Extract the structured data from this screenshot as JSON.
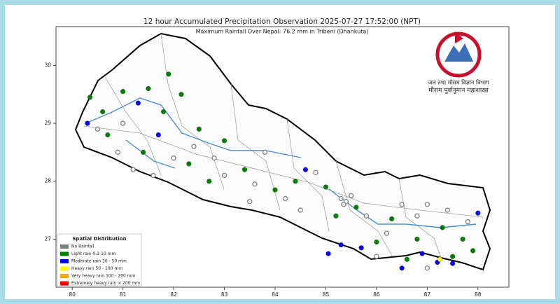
{
  "map": {
    "title": "12 hour Accumulated Precipitation Observation 2025-07-27 17:52:00 (NPT)",
    "subtitle": "Maximum Rainfall Over Nepal: 76.2 mm in Tribeni (Dhankuta)",
    "xlim": [
      79.68,
      88.61
    ],
    "ylim": [
      26.17,
      30.67
    ],
    "xticks": [
      80,
      81,
      82,
      83,
      84,
      85,
      86,
      87,
      88
    ],
    "yticks": [
      27,
      28,
      29,
      30
    ],
    "legend": {
      "title": "Spatial Distribution",
      "items": [
        {
          "label": "No Rainfall",
          "color": "#808080"
        },
        {
          "label": "Light rain 0.1-10 mm",
          "color": "#008000"
        },
        {
          "label": "Moderate rain 10 - 50 mm",
          "color": "#0000ff"
        },
        {
          "label": "Heavy rain 50 - 100 mm",
          "color": "#ffff00"
        },
        {
          "label": "Very heavy rain 100 - 200 mm",
          "color": "#ffa500"
        },
        {
          "label": "Extremely heavy rain > 200 mm",
          "color": "#ff0000"
        }
      ]
    },
    "logo": {
      "line1": "जल तथा मौसम विज्ञान विभाग",
      "line2": "मौसम पूर्वानुमान महाशाखा"
    },
    "stations": [
      {
        "lon": 80.35,
        "lat": 29.45,
        "cls": 1
      },
      {
        "lon": 80.6,
        "lat": 29.2,
        "cls": 1
      },
      {
        "lon": 81.0,
        "lat": 29.55,
        "cls": 1
      },
      {
        "lon": 81.5,
        "lat": 29.6,
        "cls": 1
      },
      {
        "lon": 81.9,
        "lat": 29.85,
        "cls": 1
      },
      {
        "lon": 82.15,
        "lat": 29.5,
        "cls": 1
      },
      {
        "lon": 81.8,
        "lat": 29.2,
        "cls": 1
      },
      {
        "lon": 80.7,
        "lat": 28.8,
        "cls": 1
      },
      {
        "lon": 81.4,
        "lat": 28.5,
        "cls": 1
      },
      {
        "lon": 82.3,
        "lat": 28.3,
        "cls": 1
      },
      {
        "lon": 82.7,
        "lat": 28.0,
        "cls": 1
      },
      {
        "lon": 83.4,
        "lat": 28.2,
        "cls": 1
      },
      {
        "lon": 84.0,
        "lat": 27.85,
        "cls": 1
      },
      {
        "lon": 84.4,
        "lat": 28.0,
        "cls": 1
      },
      {
        "lon": 85.0,
        "lat": 27.9,
        "cls": 1
      },
      {
        "lon": 85.6,
        "lat": 27.55,
        "cls": 1
      },
      {
        "lon": 86.3,
        "lat": 27.35,
        "cls": 1
      },
      {
        "lon": 86.8,
        "lat": 27.0,
        "cls": 1
      },
      {
        "lon": 87.3,
        "lat": 27.2,
        "cls": 1
      },
      {
        "lon": 87.7,
        "lat": 27.0,
        "cls": 1
      },
      {
        "lon": 87.9,
        "lat": 26.8,
        "cls": 1
      },
      {
        "lon": 87.5,
        "lat": 26.7,
        "cls": 1
      },
      {
        "lon": 86.0,
        "lat": 26.95,
        "cls": 1
      },
      {
        "lon": 86.6,
        "lat": 26.65,
        "cls": 1
      },
      {
        "lon": 85.2,
        "lat": 27.4,
        "cls": 1
      },
      {
        "lon": 83.0,
        "lat": 28.7,
        "cls": 1
      },
      {
        "lon": 82.5,
        "lat": 28.9,
        "cls": 1
      },
      {
        "lon": 80.3,
        "lat": 29.0,
        "cls": 2
      },
      {
        "lon": 81.3,
        "lat": 29.35,
        "cls": 2
      },
      {
        "lon": 81.7,
        "lat": 28.8,
        "cls": 2
      },
      {
        "lon": 84.6,
        "lat": 28.2,
        "cls": 2
      },
      {
        "lon": 85.3,
        "lat": 26.9,
        "cls": 2
      },
      {
        "lon": 85.7,
        "lat": 26.85,
        "cls": 2
      },
      {
        "lon": 86.9,
        "lat": 26.75,
        "cls": 2
      },
      {
        "lon": 87.2,
        "lat": 26.6,
        "cls": 2
      },
      {
        "lon": 87.5,
        "lat": 26.58,
        "cls": 2
      },
      {
        "lon": 88.0,
        "lat": 27.45,
        "cls": 2
      },
      {
        "lon": 86.5,
        "lat": 26.5,
        "cls": 2
      },
      {
        "lon": 85.05,
        "lat": 26.75,
        "cls": 2
      },
      {
        "lon": 87.25,
        "lat": 26.65,
        "cls": 3
      },
      {
        "lon": 80.5,
        "lat": 28.9,
        "cls": 0
      },
      {
        "lon": 81.0,
        "lat": 29.0,
        "cls": 0
      },
      {
        "lon": 81.2,
        "lat": 28.2,
        "cls": 0
      },
      {
        "lon": 82.0,
        "lat": 28.4,
        "cls": 0
      },
      {
        "lon": 82.4,
        "lat": 28.6,
        "cls": 0
      },
      {
        "lon": 83.0,
        "lat": 28.1,
        "cls": 0
      },
      {
        "lon": 83.6,
        "lat": 27.95,
        "cls": 0
      },
      {
        "lon": 84.2,
        "lat": 27.7,
        "cls": 0
      },
      {
        "lon": 84.8,
        "lat": 28.15,
        "cls": 0
      },
      {
        "lon": 85.3,
        "lat": 27.7,
        "cls": 0
      },
      {
        "lon": 85.4,
        "lat": 27.65,
        "cls": 0
      },
      {
        "lon": 85.5,
        "lat": 27.75,
        "cls": 0
      },
      {
        "lon": 85.35,
        "lat": 27.6,
        "cls": 0
      },
      {
        "lon": 85.8,
        "lat": 27.4,
        "cls": 0
      },
      {
        "lon": 86.2,
        "lat": 27.1,
        "cls": 0
      },
      {
        "lon": 86.5,
        "lat": 27.6,
        "cls": 0
      },
      {
        "lon": 86.8,
        "lat": 27.4,
        "cls": 0
      },
      {
        "lon": 87.0,
        "lat": 27.6,
        "cls": 0
      },
      {
        "lon": 87.4,
        "lat": 27.5,
        "cls": 0
      },
      {
        "lon": 87.8,
        "lat": 27.3,
        "cls": 0
      },
      {
        "lon": 83.5,
        "lat": 27.65,
        "cls": 0
      },
      {
        "lon": 84.5,
        "lat": 27.5,
        "cls": 0
      },
      {
        "lon": 82.8,
        "lat": 28.4,
        "cls": 0
      },
      {
        "lon": 83.8,
        "lat": 28.5,
        "cls": 0
      },
      {
        "lon": 81.6,
        "lat": 28.1,
        "cls": 0
      },
      {
        "lon": 80.9,
        "lat": 28.5,
        "cls": 0
      },
      {
        "lon": 86.0,
        "lat": 26.7,
        "cls": 0
      },
      {
        "lon": 87.0,
        "lat": 26.5,
        "cls": 0
      }
    ]
  }
}
